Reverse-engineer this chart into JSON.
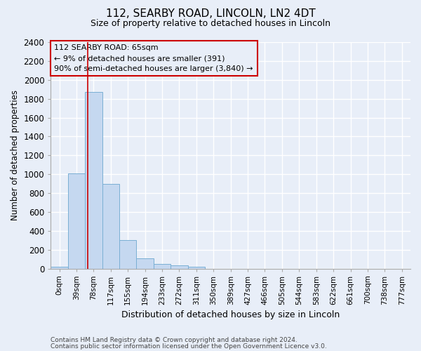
{
  "title_line1": "112, SEARBY ROAD, LINCOLN, LN2 4DT",
  "title_line2": "Size of property relative to detached houses in Lincoln",
  "xlabel": "Distribution of detached houses by size in Lincoln",
  "ylabel": "Number of detached properties",
  "categories": [
    "0sqm",
    "39sqm",
    "78sqm",
    "117sqm",
    "155sqm",
    "194sqm",
    "233sqm",
    "272sqm",
    "311sqm",
    "350sqm",
    "389sqm",
    "427sqm",
    "466sqm",
    "505sqm",
    "544sqm",
    "583sqm",
    "622sqm",
    "661sqm",
    "700sqm",
    "738sqm",
    "777sqm"
  ],
  "bar_values": [
    20,
    1005,
    1870,
    900,
    305,
    105,
    48,
    33,
    18,
    0,
    0,
    0,
    0,
    0,
    0,
    0,
    0,
    0,
    0,
    0,
    0
  ],
  "bar_color": "#c5d8f0",
  "bar_edgecolor": "#7aafd4",
  "vline_x": 1.67,
  "vline_color": "#cc0000",
  "ylim": [
    0,
    2400
  ],
  "yticks": [
    0,
    200,
    400,
    600,
    800,
    1000,
    1200,
    1400,
    1600,
    1800,
    2000,
    2200,
    2400
  ],
  "annotation_text": "112 SEARBY ROAD: 65sqm\n← 9% of detached houses are smaller (391)\n90% of semi-detached houses are larger (3,840) →",
  "annotation_box_color": "#cc0000",
  "footer_line1": "Contains HM Land Registry data © Crown copyright and database right 2024.",
  "footer_line2": "Contains public sector information licensed under the Open Government Licence v3.0.",
  "background_color": "#e8eef8",
  "grid_color": "#ffffff"
}
